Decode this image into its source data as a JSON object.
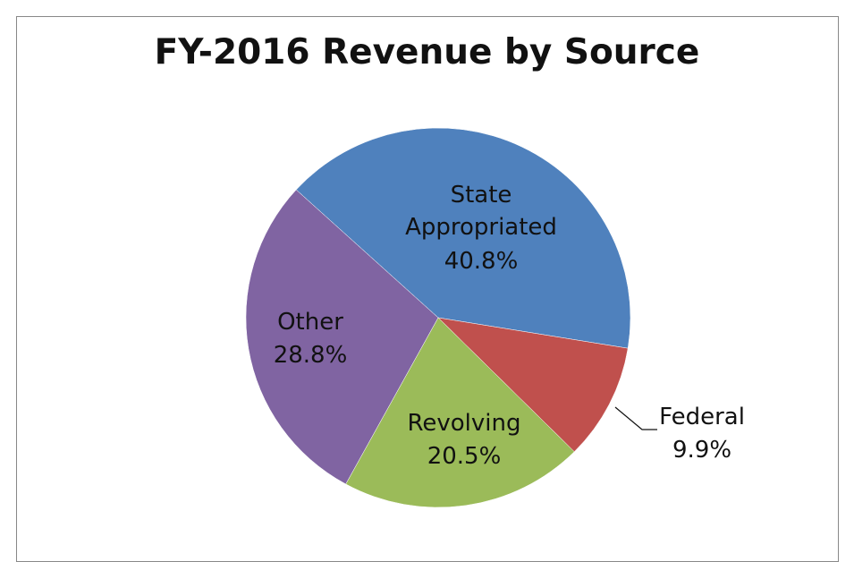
{
  "chart_data": {
    "type": "pie",
    "title": "FY-2016 Revenue by Source",
    "categories": [
      "State Appropriated",
      "Federal",
      "Revolving",
      "Other"
    ],
    "values": [
      40.8,
      9.9,
      20.5,
      28.8
    ],
    "value_labels": [
      "40.8%",
      "9.9%",
      "20.5%",
      "28.8%"
    ],
    "colors": [
      "#4f81bd",
      "#c0504d",
      "#9bbb59",
      "#8064a2"
    ]
  }
}
